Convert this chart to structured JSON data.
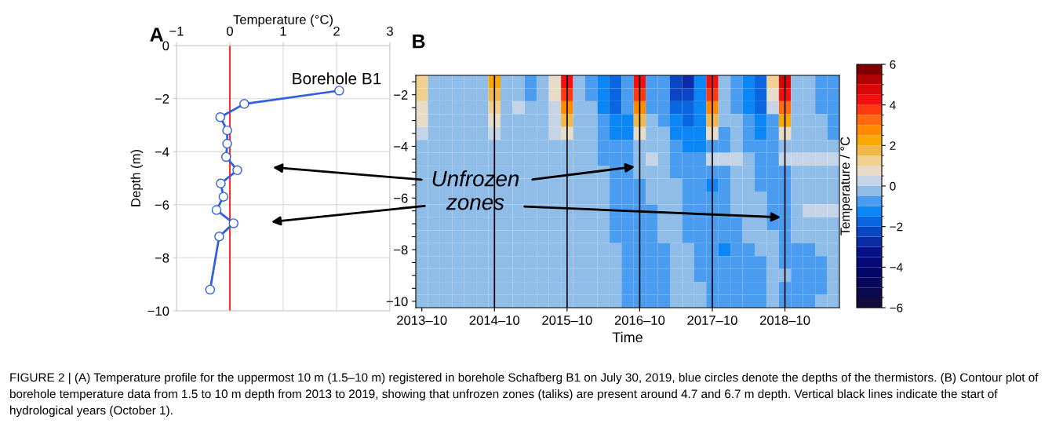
{
  "chart_data": [
    {
      "type": "line",
      "title": "A",
      "xlabel": "Temperature (°C)",
      "ylabel": "Depth (m)",
      "xlim": [
        -1,
        3
      ],
      "ylim": [
        -10,
        0
      ],
      "xticks": [
        {
          "value": -1,
          "label": "−1"
        },
        0,
        1,
        2,
        3
      ],
      "yticks": [
        0,
        {
          "value": -2,
          "label": "−2"
        },
        {
          "value": -4,
          "label": "−4"
        },
        {
          "value": -6,
          "label": "−6"
        },
        {
          "value": -8,
          "label": "−8"
        },
        {
          "value": -10,
          "label": "−10"
        }
      ],
      "grid": true,
      "marker": "circle",
      "line_style": "solid",
      "legend": false,
      "annotations": [
        "Borehole B1"
      ],
      "ref_lines": [
        {
          "axis": "x",
          "value": 0,
          "color": "#ff2a2a"
        }
      ],
      "series": [
        {
          "color": "#3060e0",
          "x": [
            2.05,
            0.27,
            -0.18,
            -0.05,
            -0.05,
            -0.07,
            0.14,
            -0.17,
            -0.12,
            -0.25,
            0.07,
            -0.2,
            -0.37
          ],
          "values": [
            -1.7,
            -2.2,
            -2.7,
            -3.2,
            -3.7,
            -4.2,
            -4.7,
            -5.2,
            -5.7,
            -6.2,
            -6.7,
            -7.2,
            -9.2
          ]
        }
      ]
    },
    {
      "type": "heatmap",
      "title": "B",
      "xlabel": "Time",
      "clabel": "Temperature / °C",
      "categories": [
        "2013–10",
        null,
        null,
        null,
        null,
        null,
        "2014–10",
        null,
        null,
        null,
        null,
        null,
        "2015–10",
        null,
        null,
        null,
        null,
        null,
        "2016–10",
        null,
        null,
        null,
        null,
        null,
        "2017–10",
        null,
        null,
        null,
        null,
        null,
        "2018–10",
        null,
        null,
        null,
        null
      ],
      "y_categories": [
        null,
        "−2",
        null,
        null,
        null,
        "−4",
        null,
        null,
        null,
        "−6",
        null,
        null,
        null,
        "−8",
        null,
        null,
        null,
        "−10"
      ],
      "clim": [
        -6,
        6
      ],
      "cticks": [
        {
          "value": -6,
          "label": "−6"
        },
        {
          "value": -4,
          "label": "−4"
        },
        {
          "value": -2,
          "label": "−2"
        },
        0,
        2,
        4,
        6
      ],
      "colors": [
        "#130b3c",
        "#0b0a4e",
        "#07085c",
        "#05066a",
        "#050878",
        "#06118a",
        "#0a2aa6",
        "#0a45c4",
        "#0a66e0",
        "#0a86f6",
        "#4a9cf0",
        "#8fbde8",
        "#c6d4e8",
        "#e6dcc8",
        "#f0d090",
        "#f0b84a",
        "#f8a800",
        "#ff8a00",
        "#ff6a10",
        "#ff3a10",
        "#f41010",
        "#d80808",
        "#b00404",
        "#800000"
      ],
      "ref_lines": [
        {
          "axis": "x",
          "value": "2014–10",
          "color": "#000000"
        },
        {
          "axis": "x",
          "value": "2015–10",
          "color": "#000000"
        },
        {
          "axis": "x",
          "value": "2016–10",
          "color": "#000000"
        },
        {
          "axis": "x",
          "value": "2017–10",
          "color": "#000000"
        },
        {
          "axis": "x",
          "value": "2018–10",
          "color": "#000000"
        }
      ],
      "annotations": [
        "Unfrozen\nzones",
        "FIGURE 2 | (A) Temperature profile for the uppermost 10 m (1.5–10 m) registered in borehole Schafberg B1 on July 30, 2019, blue circles denote the depths of the thermistors. (B) Contour plot of borehole temperature data from 1.5 to 10 m depth from 2013 to 2019, showing that unfrozen zones (taliks) are present around 4.7 and 6.7 m depth. Vertical black lines indicate the start of hydrological years (October 1)."
      ],
      "cells": [
        [
          1,
          -0.3,
          -0.3,
          -0.3,
          -0.3,
          -0.3,
          2,
          -0.3,
          -0.3,
          -0.7,
          -0.3,
          0.5,
          4,
          -0.3,
          -0.7,
          -1.5,
          -2,
          -1,
          4,
          -0.7,
          -1,
          -2.5,
          -3,
          -1.2,
          4,
          -0.5,
          -0.7,
          -1.5,
          -2,
          1,
          4.5,
          -0.3,
          -0.3,
          -0.7,
          -1
        ],
        [
          1,
          -0.3,
          -0.3,
          -0.3,
          -0.3,
          -0.3,
          1.5,
          -0.3,
          -0.3,
          -0.7,
          -0.3,
          0.5,
          3.5,
          -0.3,
          -0.7,
          -1.5,
          -2,
          -1,
          3.5,
          -0.7,
          -1,
          -2.5,
          -2.5,
          -1.5,
          3.5,
          -0.5,
          -0.7,
          -1.5,
          -2,
          0.5,
          4,
          -0.3,
          -0.3,
          -0.7,
          -1
        ],
        [
          0.7,
          -0.3,
          -0.3,
          -0.3,
          -0.3,
          -0.3,
          1,
          -0.3,
          0.2,
          -0.3,
          -0.3,
          0.3,
          2.5,
          -0.3,
          -0.3,
          -1.2,
          -1.7,
          -1,
          2.5,
          -0.6,
          -0.8,
          -2,
          -2,
          -1.5,
          2.5,
          -0.5,
          -0.6,
          -1.2,
          -1.7,
          0.3,
          3,
          -0.3,
          -0.3,
          -0.6,
          -0.8
        ],
        [
          0.5,
          -0.3,
          -0.3,
          -0.3,
          -0.3,
          -0.3,
          0.7,
          -0.3,
          -0.3,
          -0.3,
          -0.3,
          0.3,
          1.5,
          -0.3,
          -0.3,
          -1,
          -1.5,
          -1.2,
          1.5,
          -0.5,
          -0.6,
          -1.5,
          -1.7,
          -1.5,
          1.5,
          -0.5,
          -0.5,
          -1,
          -1.5,
          -1,
          2,
          -0.3,
          -0.3,
          -0.3,
          -0.7
        ],
        [
          0.2,
          -0.3,
          -0.3,
          -0.3,
          -0.3,
          -0.3,
          0.3,
          -0.3,
          -0.3,
          -0.3,
          -0.3,
          0.2,
          0.5,
          -0.3,
          -0.3,
          -0.8,
          -1.2,
          -1.2,
          0.5,
          -0.3,
          -0.3,
          -1.2,
          -1.5,
          -1.2,
          0.5,
          -0.6,
          -0.3,
          -0.8,
          -1.2,
          -1,
          0.5,
          -0.3,
          -0.3,
          -0.3,
          -0.6
        ],
        [
          -0.3,
          -0.3,
          -0.3,
          -0.3,
          -0.3,
          -0.3,
          -0.3,
          -0.3,
          -0.3,
          -0.3,
          -0.3,
          -0.3,
          -0.3,
          -0.3,
          -0.3,
          -0.7,
          -1,
          -1,
          -0.5,
          -0.3,
          -0.3,
          -1,
          -1.2,
          -1.2,
          -0.7,
          -0.7,
          -0.3,
          -0.6,
          -1,
          -1,
          -0.3,
          -0.3,
          -0.3,
          -0.3,
          -0.3
        ],
        [
          -0.3,
          -0.3,
          -0.3,
          -0.3,
          -0.3,
          -0.3,
          -0.3,
          -0.3,
          -0.3,
          -0.3,
          -0.3,
          -0.3,
          -0.3,
          -0.3,
          -0.3,
          -0.6,
          -1,
          -1,
          -0.5,
          0.2,
          -0.3,
          -0.8,
          -1,
          -1,
          0.3,
          0.3,
          0.3,
          -0.3,
          -0.8,
          -0.8,
          0.3,
          0.3,
          0.3,
          0.3,
          0.2
        ],
        [
          -0.3,
          -0.3,
          -0.3,
          -0.3,
          -0.3,
          -0.3,
          -0.3,
          -0.3,
          -0.3,
          -0.3,
          -0.3,
          -0.3,
          -0.3,
          -0.3,
          -0.3,
          -0.5,
          -0.8,
          -0.8,
          -0.5,
          -0.3,
          -0.3,
          -0.6,
          -1,
          -1,
          -1,
          -0.8,
          -0.3,
          -0.3,
          -0.7,
          -0.8,
          -0.6,
          -0.3,
          -0.3,
          -0.3,
          -0.3
        ],
        [
          -0.3,
          -0.3,
          -0.3,
          -0.3,
          -0.3,
          -0.3,
          -0.3,
          -0.3,
          -0.3,
          -0.3,
          -0.3,
          -0.3,
          -0.3,
          -0.3,
          -0.3,
          -0.3,
          -0.8,
          -0.8,
          -0.6,
          -0.3,
          -0.3,
          -0.3,
          -0.8,
          -1,
          -1.2,
          -0.8,
          -0.3,
          -0.3,
          -0.6,
          -0.7,
          -0.6,
          -0.3,
          -0.3,
          -0.3,
          -0.3
        ],
        [
          -0.3,
          -0.3,
          -0.3,
          -0.3,
          -0.3,
          -0.3,
          -0.3,
          -0.3,
          -0.3,
          -0.3,
          -0.3,
          -0.3,
          -0.3,
          -0.3,
          -0.3,
          -0.3,
          -0.7,
          -0.8,
          -0.7,
          -0.3,
          -0.3,
          -0.3,
          -0.8,
          -0.8,
          -1,
          -0.8,
          -0.3,
          -0.3,
          -0.3,
          -0.7,
          -0.7,
          -0.3,
          -0.3,
          -0.3,
          -0.3
        ],
        [
          -0.3,
          -0.3,
          -0.3,
          -0.3,
          -0.3,
          -0.3,
          -0.3,
          -0.3,
          -0.3,
          -0.3,
          -0.3,
          -0.3,
          -0.3,
          -0.3,
          -0.3,
          -0.3,
          -0.7,
          -0.7,
          -0.7,
          -0.6,
          -0.3,
          -0.3,
          -0.7,
          -0.8,
          -1,
          -1,
          -0.3,
          -0.3,
          -0.3,
          -0.6,
          -0.7,
          -0.3,
          0.2,
          0.2,
          0.2
        ],
        [
          -0.3,
          -0.3,
          -0.3,
          -0.3,
          -0.3,
          -0.3,
          -0.3,
          -0.3,
          -0.3,
          -0.3,
          -0.3,
          -0.3,
          -0.3,
          -0.3,
          -0.3,
          -0.3,
          -0.6,
          -0.7,
          -0.7,
          -0.6,
          -0.3,
          -0.3,
          -0.7,
          -0.8,
          -0.8,
          -1,
          -0.6,
          -0.3,
          -0.3,
          -0.6,
          -0.7,
          -0.3,
          -0.3,
          -0.3,
          -0.3
        ],
        [
          -0.3,
          -0.3,
          -0.3,
          -0.3,
          -0.3,
          -0.3,
          -0.3,
          -0.3,
          -0.3,
          -0.3,
          -0.3,
          -0.3,
          -0.3,
          -0.3,
          -0.3,
          -0.3,
          -0.6,
          -0.7,
          -0.8,
          -0.6,
          -0.3,
          -0.3,
          -0.6,
          -0.7,
          -0.8,
          -1,
          -0.7,
          -0.3,
          -0.3,
          -0.3,
          -0.6,
          -0.3,
          -0.3,
          -0.3,
          -0.3
        ],
        [
          -0.3,
          -0.3,
          -0.3,
          -0.3,
          -0.3,
          -0.3,
          -0.3,
          -0.3,
          -0.3,
          -0.3,
          -0.3,
          -0.3,
          -0.3,
          -0.3,
          -0.3,
          -0.3,
          -0.5,
          -0.7,
          -0.8,
          -0.7,
          -0.6,
          -0.3,
          -0.3,
          -0.7,
          -0.8,
          -1.2,
          -0.8,
          -0.6,
          -0.3,
          -0.3,
          -0.6,
          -0.6,
          -0.6,
          -0.3,
          -0.3
        ],
        [
          -0.3,
          -0.3,
          -0.3,
          -0.3,
          -0.3,
          -0.3,
          -0.3,
          -0.3,
          -0.3,
          -0.3,
          -0.3,
          -0.3,
          -0.3,
          -0.3,
          -0.3,
          -0.3,
          -0.3,
          -0.6,
          -0.8,
          -0.7,
          -0.6,
          -0.3,
          -0.3,
          -0.6,
          -0.7,
          -1,
          -1,
          -0.7,
          -0.6,
          -0.3,
          -0.6,
          -0.6,
          -0.6,
          -0.6,
          -0.3
        ],
        [
          -0.3,
          -0.3,
          -0.3,
          -0.3,
          -0.3,
          -0.3,
          -0.3,
          -0.3,
          -0.3,
          -0.3,
          -0.3,
          -0.3,
          -0.3,
          -0.3,
          -0.3,
          -0.3,
          -0.3,
          -0.6,
          -0.8,
          -0.7,
          -0.6,
          -0.3,
          -0.3,
          -0.6,
          -0.7,
          -1,
          -1,
          -0.7,
          -0.6,
          -0.3,
          -0.3,
          -0.6,
          -0.6,
          -0.6,
          -0.3
        ],
        [
          -0.3,
          -0.3,
          -0.3,
          -0.3,
          -0.3,
          -0.3,
          -0.3,
          -0.3,
          -0.3,
          -0.3,
          -0.3,
          -0.3,
          -0.3,
          -0.3,
          -0.3,
          -0.3,
          -0.3,
          -0.6,
          -0.8,
          -0.7,
          -0.6,
          -0.3,
          -0.3,
          -0.3,
          -0.7,
          -0.8,
          -1,
          -0.7,
          -0.6,
          -0.3,
          -0.6,
          -0.6,
          -0.6,
          -0.6,
          -0.3
        ],
        [
          -0.3,
          -0.3,
          -0.3,
          -0.3,
          -0.3,
          -0.3,
          -0.3,
          -0.3,
          -0.3,
          -0.3,
          -0.3,
          -0.3,
          -0.3,
          -0.3,
          -0.3,
          -0.3,
          -0.3,
          -0.6,
          -0.8,
          -0.7,
          -0.6,
          -0.3,
          -0.3,
          -0.3,
          -0.7,
          -0.8,
          -1,
          -0.7,
          -0.6,
          -0.3,
          -0.6,
          -0.6,
          -0.6,
          -0.3,
          -0.3
        ]
      ]
    }
  ]
}
